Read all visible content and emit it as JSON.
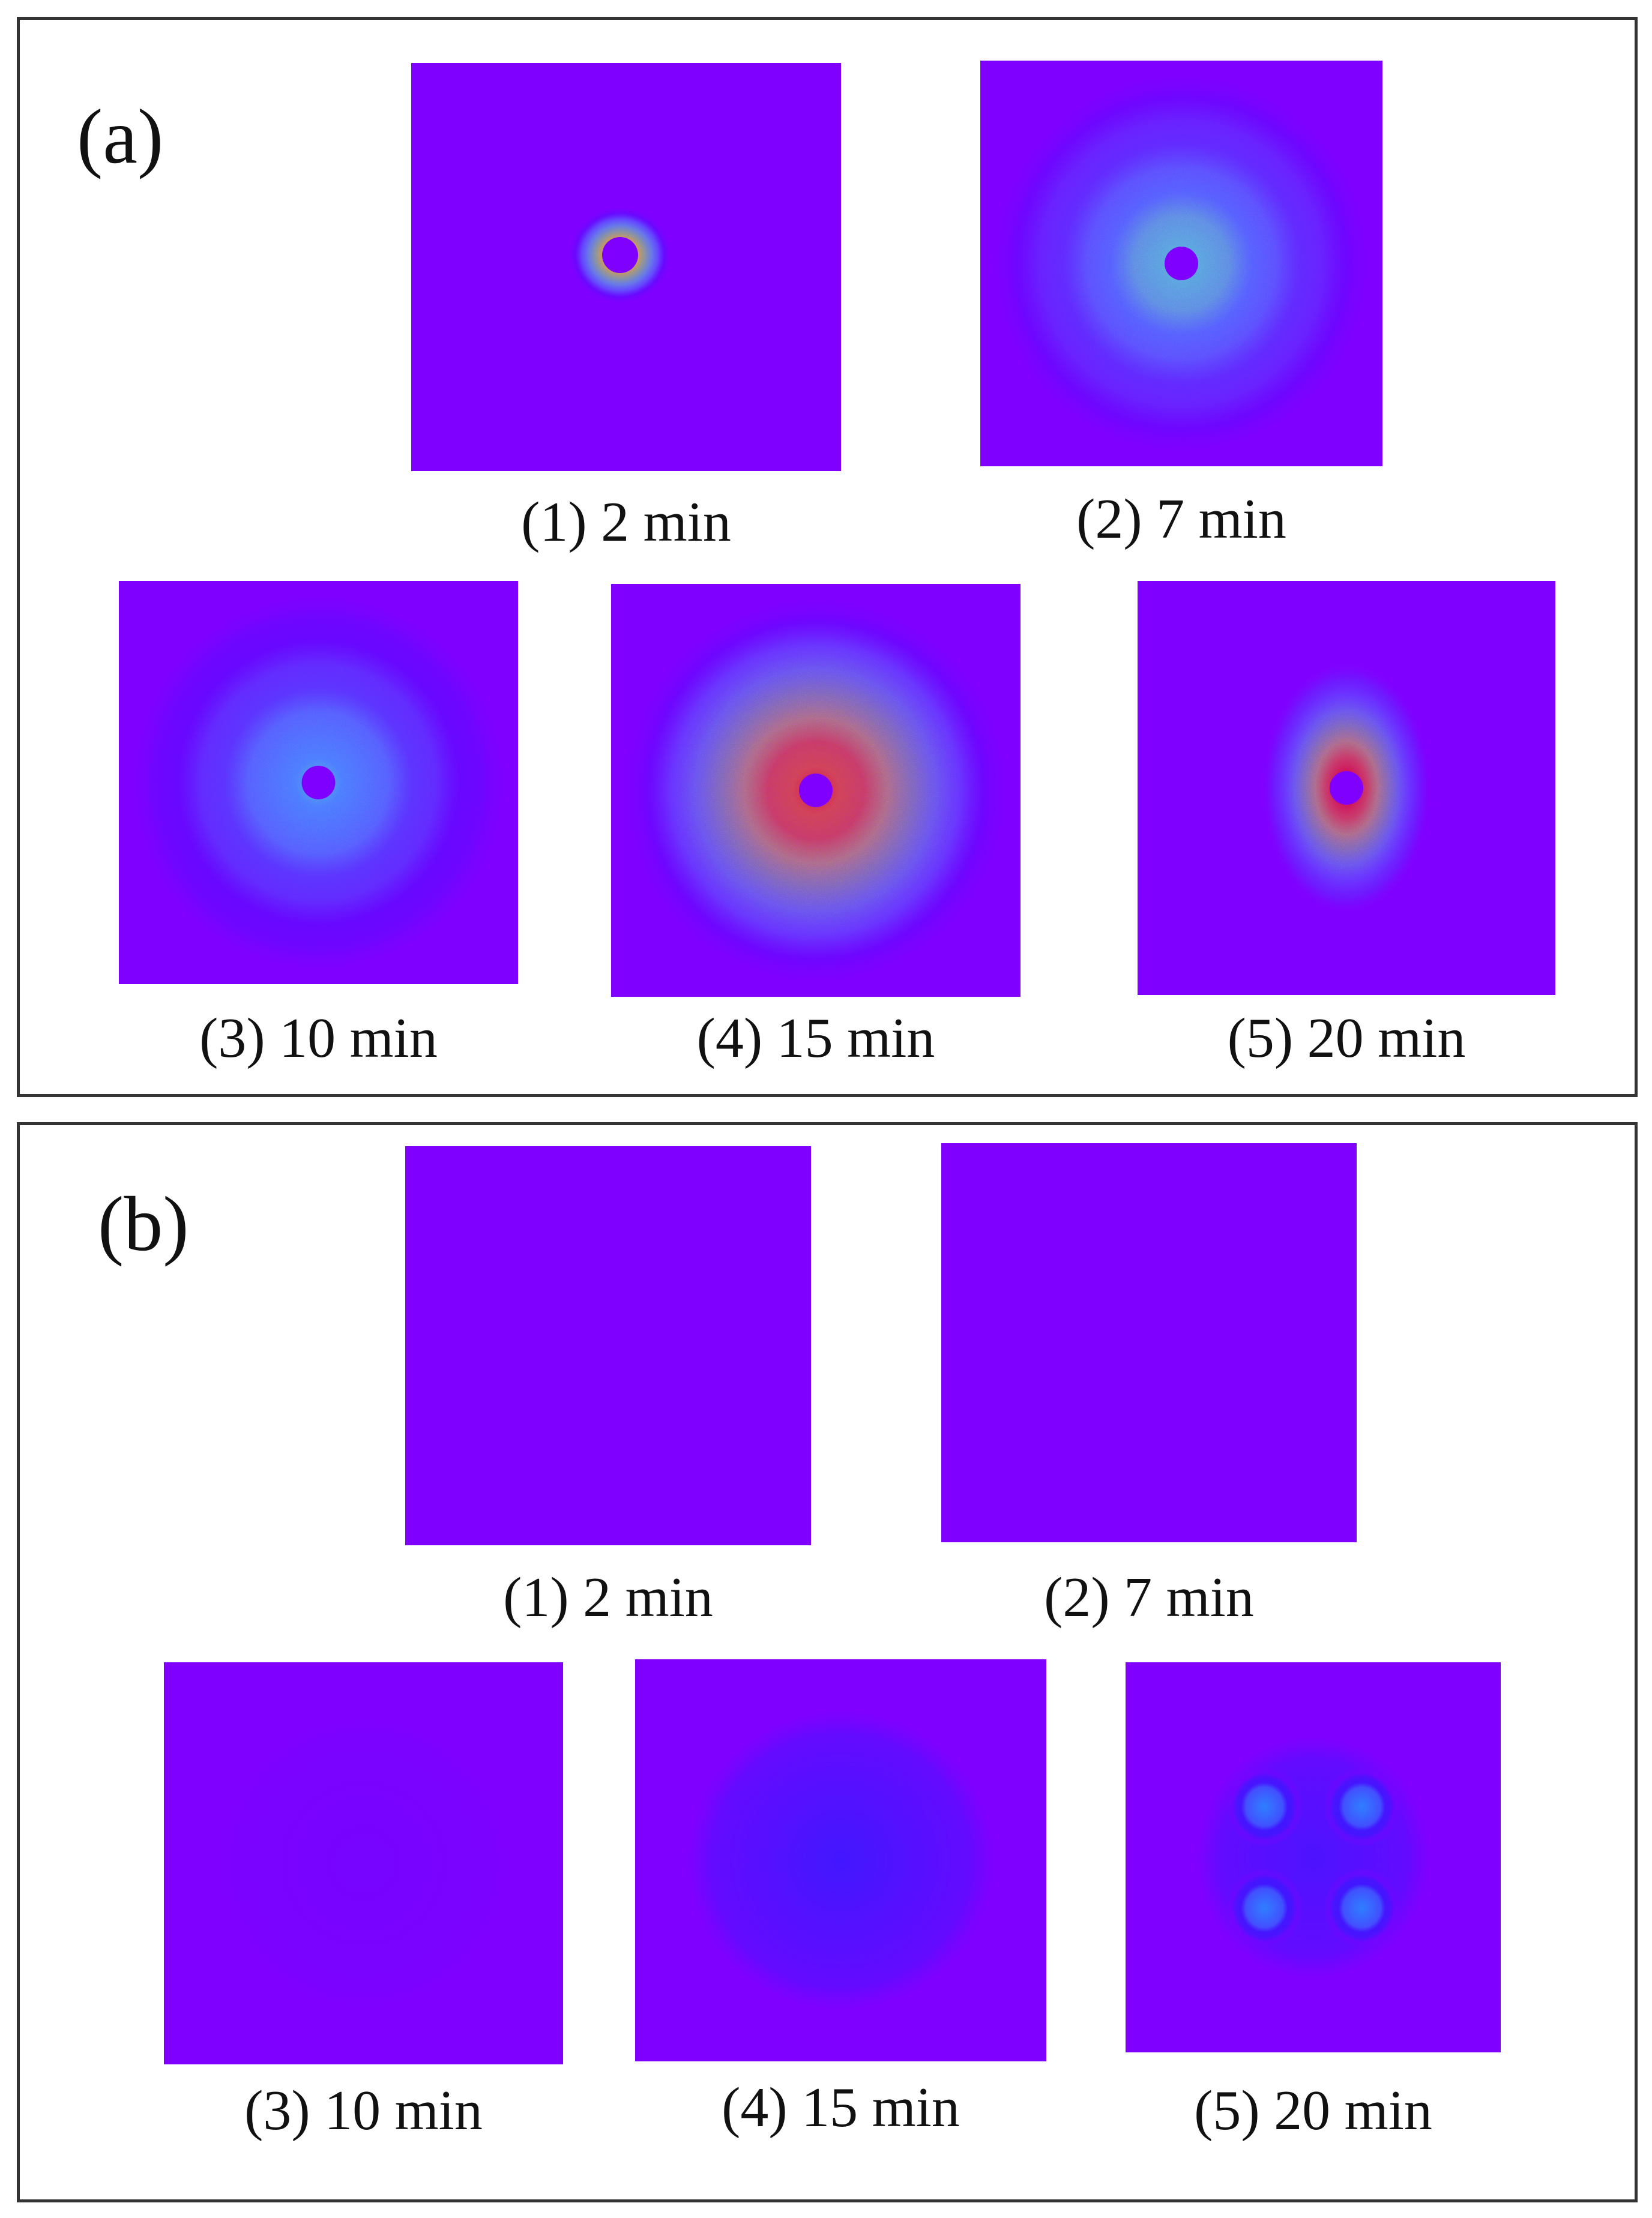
{
  "figure": {
    "background_color": "#8000ff",
    "colormap": [
      "#8000ff",
      "#2a20ff",
      "#2f7fff",
      "#33c8ff",
      "#4dffd0",
      "#8dff66",
      "#e0e020",
      "#ff6a00",
      "#ff1a00"
    ],
    "panels": [
      {
        "label": "(a)",
        "images": [
          {
            "caption": "(1) 2 min",
            "pattern": "small-ring",
            "intensity": 0.9
          },
          {
            "caption": "(2) 7 min",
            "pattern": "isotropic-halo",
            "intensity": 0.55
          },
          {
            "caption": "(3) 10 min",
            "pattern": "isotropic-halo",
            "intensity": 0.45
          },
          {
            "caption": "(4) 15 min",
            "pattern": "isotropic-halo",
            "intensity": 0.95
          },
          {
            "caption": "(5) 20 min",
            "pattern": "elliptical-halo",
            "intensity": 1.0
          }
        ]
      },
      {
        "label": "(b)",
        "images": [
          {
            "caption": "(1) 2 min",
            "pattern": "blank",
            "intensity": 0.0
          },
          {
            "caption": "(2) 7 min",
            "pattern": "blank",
            "intensity": 0.0
          },
          {
            "caption": "(3) 10 min",
            "pattern": "blank",
            "intensity": 0.02
          },
          {
            "caption": "(4) 15 min",
            "pattern": "faint-halo",
            "intensity": 0.12
          },
          {
            "caption": "(5) 20 min",
            "pattern": "four-lobe",
            "intensity": 0.3
          }
        ]
      }
    ]
  }
}
